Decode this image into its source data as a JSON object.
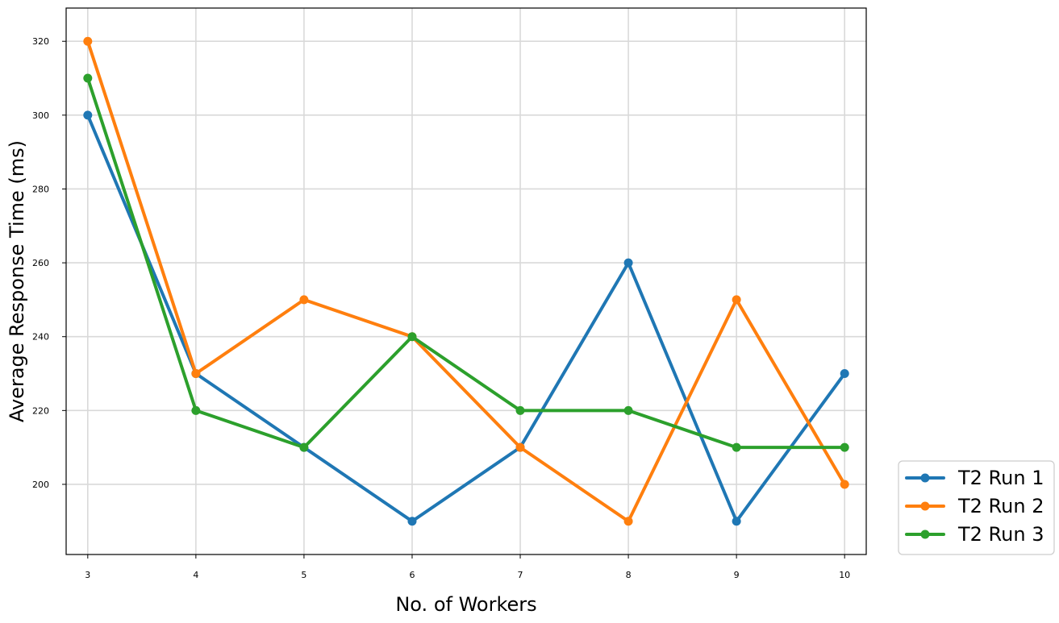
{
  "chart_data": {
    "type": "line",
    "title": "",
    "xlabel": "No. of Workers",
    "ylabel": "Average Response Time (ms)",
    "x": [
      3,
      4,
      5,
      6,
      7,
      8,
      9,
      10
    ],
    "xticks": [
      "3",
      "4",
      "5",
      "6",
      "7",
      "8",
      "9",
      "10"
    ],
    "yticks": [
      "200",
      "220",
      "240",
      "260",
      "280",
      "300",
      "320"
    ],
    "xlim": [
      2.8,
      10.2
    ],
    "ylim": [
      181,
      329
    ],
    "grid": true,
    "legend_position": "bottom-right outside",
    "series": [
      {
        "name": "T2 Run 1",
        "color": "#1f77b4",
        "values": [
          300,
          230,
          210,
          190,
          210,
          260,
          190,
          230
        ]
      },
      {
        "name": "T2 Run 2",
        "color": "#ff7f0e",
        "values": [
          320,
          230,
          250,
          240,
          210,
          190,
          250,
          200
        ]
      },
      {
        "name": "T2 Run 3",
        "color": "#2ca02c",
        "values": [
          310,
          220,
          210,
          240,
          220,
          220,
          210,
          210
        ]
      }
    ]
  }
}
